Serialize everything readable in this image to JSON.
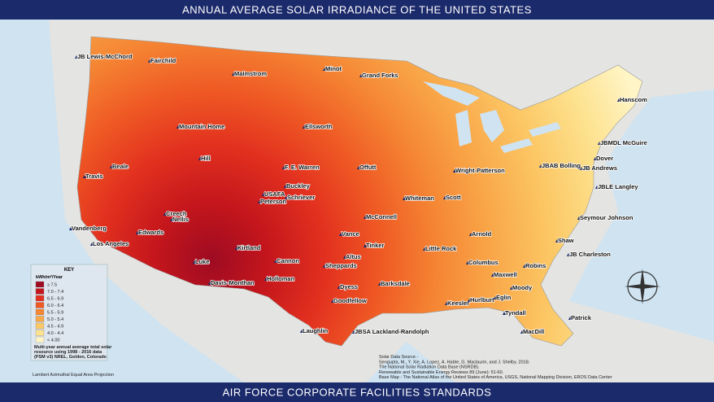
{
  "header": {
    "title": "ANNUAL AVERAGE SOLAR IRRADIANCE OF THE UNITED STATES"
  },
  "footer": {
    "text": "AIR FORCE CORPORATE FACILITIES STANDARDS"
  },
  "bases": [
    "JB Lewis-McChord",
    "Fairchild",
    "Malmstrom",
    "Minot",
    "Grand Forks",
    "Hanscom",
    "Mountain Home",
    "Ellsworth",
    "JBMDL McGuire",
    "Dover",
    "Hill",
    "Beale",
    "F. E. Warren",
    "Offutt",
    "Wright-Patterson",
    "JBAB Bolling",
    "JB Andrews",
    "Travis",
    "JBLE Langley",
    "Buckley",
    "USAFA",
    "Schriever",
    "Peterson",
    "Whiteman",
    "Scott",
    "Creech",
    "Nellis",
    "McConnell",
    "Seymour Johnson",
    "Vandenberg",
    "Edwards",
    "Vance",
    "Arnold",
    "Los Angeles",
    "Shaw",
    "Kirtland",
    "Tinker",
    "Little Rock",
    "JB Charleston",
    "Luke",
    "Cannon",
    "Altus",
    "Sheppards",
    "Columbus",
    "Robins",
    "Davis-Monthan",
    "Holloman",
    "Barksdale",
    "Maxwell",
    "Dyess",
    "Moody",
    "Goodfellow",
    "Keesler",
    "Hurlburt",
    "Eglin",
    "Tyndall",
    "Patrick",
    "Laughlin",
    "JBSA Lackland-Randolph",
    "MacDill"
  ],
  "legend": {
    "title": "KEY",
    "unit": "kWh/m²/Year",
    "classes": [
      {
        "label": "≥ 7.5",
        "color": "#9e0b22"
      },
      {
        "label": "7.0 - 7.4",
        "color": "#c4161c"
      },
      {
        "label": "6.5 - 6.9",
        "color": "#e2301f"
      },
      {
        "label": "6.0 - 6.4",
        "color": "#ef5a24"
      },
      {
        "label": "5.5 - 5.9",
        "color": "#f58634"
      },
      {
        "label": "5.0 - 5.4",
        "color": "#f9a94a"
      },
      {
        "label": "4.5 - 4.9",
        "color": "#fcc866"
      },
      {
        "label": "4.0 - 4.4",
        "color": "#fde28f"
      },
      {
        "label": "< 4.00",
        "color": "#fff5c6"
      }
    ],
    "note": [
      "Multi-year annual average total solar",
      "resource using 1998 - 2016 data",
      "(PSM v3) NREL, Golden, Colorado"
    ]
  },
  "source": [
    "Solar Data Source -",
    "Sengupta, M., Y. Xie, A. Lopez, A. Habte, G. Maclaurin, and J. Shelby. 2018.",
    "The National Solar Radiation Data Base (NSRDB).",
    "Renewable and Sustainable Energy Reviews  89 (June): 51-60.",
    "Base Map - The National Atlas of the United States of America, USGS, National Mapping Division, EROS Data Center"
  ],
  "projection": "Lambert Azimuthal Equal Area Projection"
}
